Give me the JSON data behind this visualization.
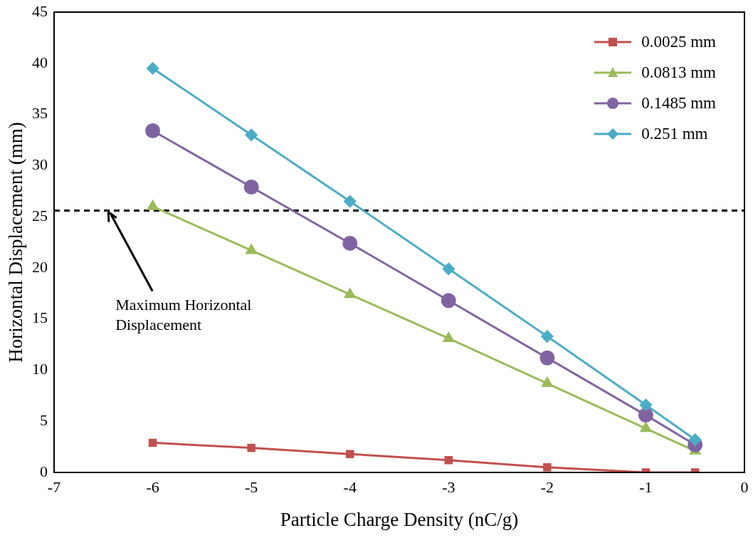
{
  "chart_data": {
    "type": "line",
    "xlabel": "Particle Charge Density (nC/g)",
    "ylabel": "Horizontal Displacement (mm)",
    "x": [
      -6,
      -5,
      -4,
      -3,
      -2,
      -1,
      -0.5
    ],
    "series": [
      {
        "name": "0.0025 mm",
        "color": "#c0504d",
        "marker": "square",
        "values": [
          2.9,
          2.4,
          1.8,
          1.2,
          0.5,
          0,
          0
        ]
      },
      {
        "name": "0.0813 mm",
        "color": "#9bbb59",
        "marker": "triangle",
        "values": [
          26,
          21.7,
          17.4,
          13.1,
          8.7,
          4.3,
          2.1
        ]
      },
      {
        "name": "0.1485 mm",
        "color": "#8064a2",
        "marker": "circle",
        "values": [
          33.4,
          27.9,
          22.4,
          16.8,
          11.2,
          5.6,
          2.7
        ]
      },
      {
        "name": "0.251 mm",
        "color": "#4bacc6",
        "marker": "diamond",
        "values": [
          39.5,
          33,
          26.5,
          19.9,
          13.3,
          6.6,
          3.2
        ]
      }
    ],
    "xlim": [
      -7,
      0
    ],
    "xticks": [
      -7,
      -6,
      -5,
      -4,
      -3,
      -2,
      -1,
      0
    ],
    "ylim": [
      0,
      45
    ],
    "yticks": [
      0,
      5,
      10,
      15,
      20,
      25,
      30,
      35,
      40,
      45
    ],
    "ref_lines": [
      {
        "axis": "y",
        "value": 25.6,
        "color": "#000000",
        "line_style": "dashed"
      }
    ],
    "annotations": [
      {
        "text": "Maximum Horizontal Displacement",
        "x": -6.45,
        "y": 25.6
      }
    ],
    "legend": "top right",
    "grid": false,
    "line_style": "solid"
  }
}
